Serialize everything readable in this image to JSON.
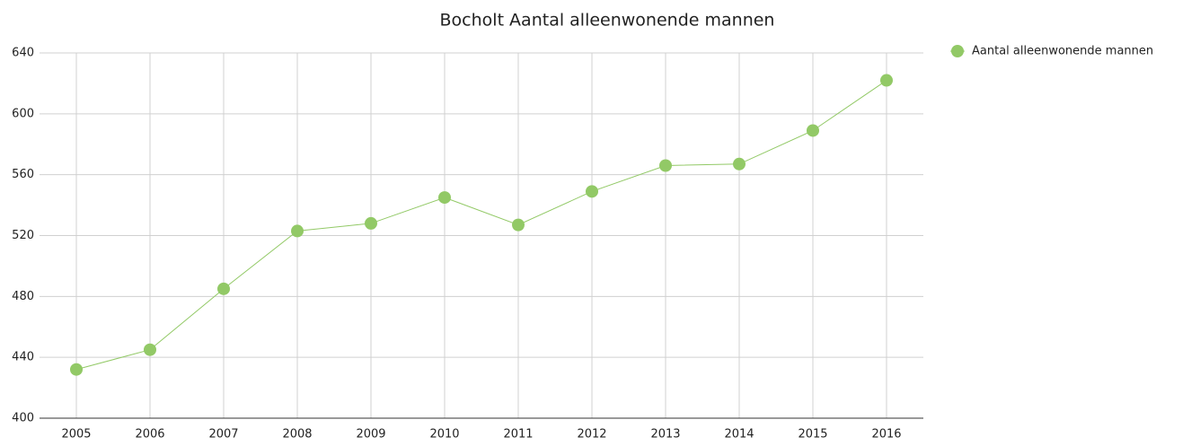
{
  "chart_data": {
    "type": "line",
    "title": "Bocholt  Aantal alleenwonende mannen",
    "categories": [
      "2005",
      "2006",
      "2007",
      "2008",
      "2009",
      "2010",
      "2011",
      "2012",
      "2013",
      "2014",
      "2015",
      "2016"
    ],
    "series": [
      {
        "name": "Aantal alleenwonende mannen",
        "color": "#92c966",
        "values": [
          432,
          445,
          485,
          523,
          528,
          545,
          527,
          549,
          566,
          567,
          589,
          622
        ]
      }
    ],
    "ylim": [
      400,
      640
    ],
    "yticks": [
      400,
      440,
      480,
      520,
      560,
      600,
      640
    ],
    "grid": true,
    "legend": "top-right"
  }
}
